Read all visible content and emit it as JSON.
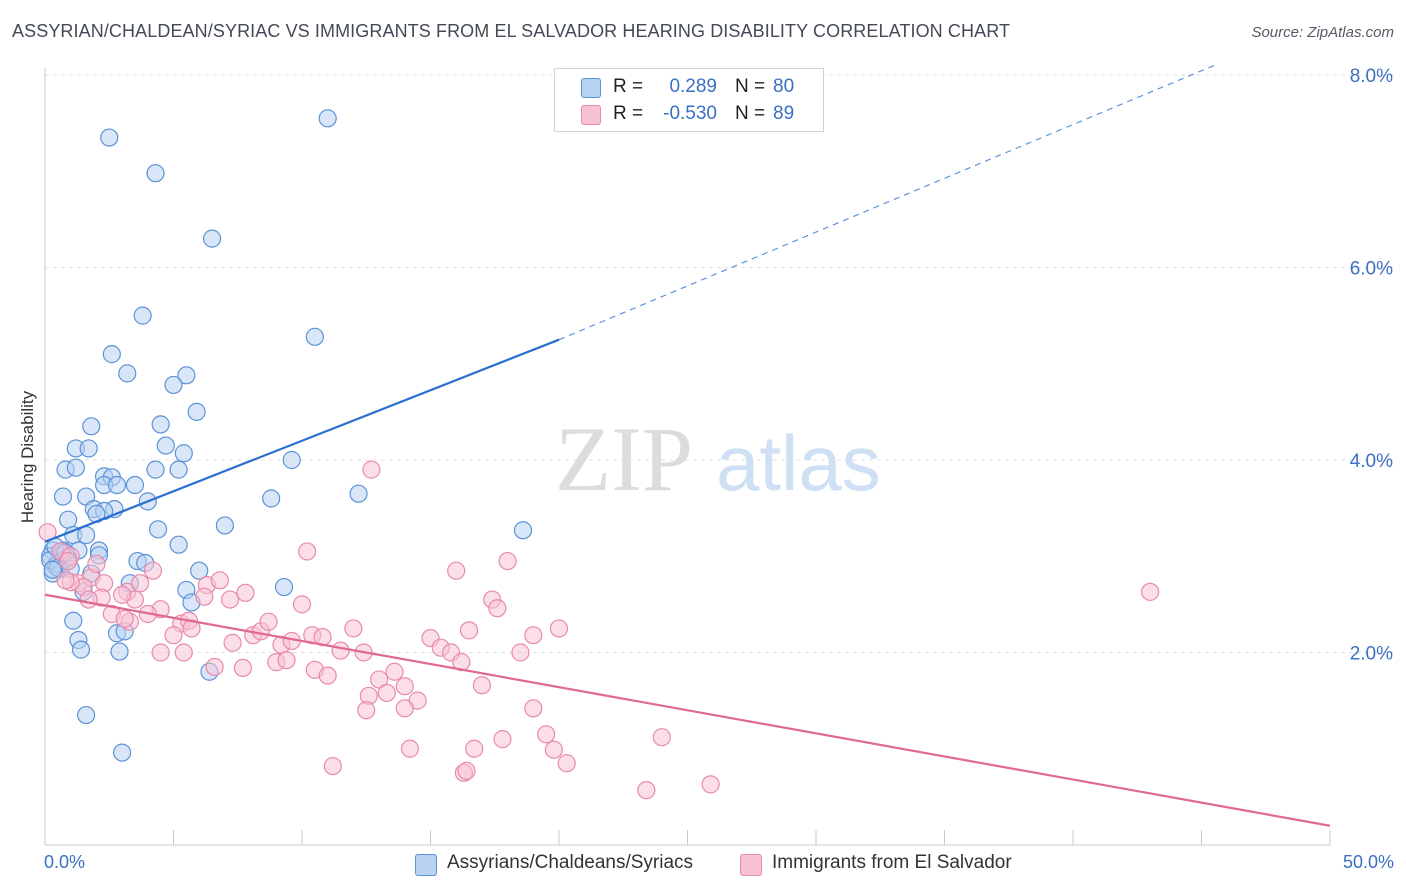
{
  "title": "ASSYRIAN/CHALDEAN/SYRIAC VS IMMIGRANTS FROM EL SALVADOR HEARING DISABILITY CORRELATION CHART",
  "source": "Source: ZipAtlas.com",
  "watermark": {
    "zip": "ZIP",
    "atlas": "atlas"
  },
  "colors": {
    "blue_fill": "#b8d2f3",
    "blue_stroke": "#5b93d8",
    "blue_line": "#2a6fd0",
    "pink_fill": "#f7c3d4",
    "pink_stroke": "#e88aac",
    "pink_line": "#e06894",
    "tick_text": "#3b6fc4",
    "grid": "#e2e2e2"
  },
  "legend_top": [
    {
      "r_label": "R =",
      "r_value": "0.289",
      "n_label": "N =",
      "n_value": "80"
    },
    {
      "r_label": "R =",
      "r_value": "-0.530",
      "n_label": "N =",
      "n_value": "89"
    }
  ],
  "chart_data": {
    "type": "scatter",
    "title": "ASSYRIAN/CHALDEAN/SYRIAC VS IMMIGRANTS FROM EL SALVADOR HEARING DISABILITY CORRELATION CHART",
    "xlabel": "",
    "ylabel": "Hearing Disability",
    "xlim": [
      0,
      50
    ],
    "ylim": [
      0,
      8
    ],
    "x_tick_labels": [
      "0.0%",
      "50.0%"
    ],
    "y_ticks": [
      2,
      4,
      6,
      8
    ],
    "y_tick_labels": [
      "2.0%",
      "4.0%",
      "6.0%",
      "8.0%"
    ],
    "grid": true,
    "legend_position": "bottom",
    "series": [
      {
        "name": "Assyrians/Chaldeans/Syriacs",
        "r": 0.289,
        "n": 80,
        "trend": {
          "x": [
            0,
            20
          ],
          "y": [
            3.15,
            5.25
          ],
          "dashed_to": [
            45.5,
            8.1
          ]
        },
        "points": [
          [
            2.5,
            7.35
          ],
          [
            11,
            7.55
          ],
          [
            4.3,
            6.98
          ],
          [
            6.5,
            6.3
          ],
          [
            3.8,
            5.5
          ],
          [
            10.5,
            5.28
          ],
          [
            2.6,
            5.1
          ],
          [
            3.2,
            4.9
          ],
          [
            5.5,
            4.88
          ],
          [
            5,
            4.78
          ],
          [
            5.9,
            4.5
          ],
          [
            1.8,
            4.35
          ],
          [
            4.5,
            4.37
          ],
          [
            4.7,
            4.15
          ],
          [
            1.2,
            4.12
          ],
          [
            1.7,
            4.12
          ],
          [
            5.4,
            4.07
          ],
          [
            9.6,
            4.0
          ],
          [
            0.8,
            3.9
          ],
          [
            1.2,
            3.92
          ],
          [
            4.3,
            3.9
          ],
          [
            5.2,
            3.9
          ],
          [
            2.3,
            3.83
          ],
          [
            2.6,
            3.82
          ],
          [
            2.3,
            3.74
          ],
          [
            2.8,
            3.74
          ],
          [
            3.5,
            3.74
          ],
          [
            12.2,
            3.65
          ],
          [
            0.7,
            3.62
          ],
          [
            1.6,
            3.62
          ],
          [
            8.8,
            3.6
          ],
          [
            4.0,
            3.57
          ],
          [
            1.9,
            3.49
          ],
          [
            2.7,
            3.49
          ],
          [
            2.3,
            3.47
          ],
          [
            2.0,
            3.44
          ],
          [
            0.9,
            3.38
          ],
          [
            7.0,
            3.32
          ],
          [
            4.4,
            3.28
          ],
          [
            18.6,
            3.27
          ],
          [
            1.1,
            3.22
          ],
          [
            1.6,
            3.22
          ],
          [
            5.2,
            3.12
          ],
          [
            0.3,
            3.06
          ],
          [
            0.7,
            3.06
          ],
          [
            1.3,
            3.06
          ],
          [
            2.1,
            3.06
          ],
          [
            0.2,
            3.0
          ],
          [
            0.6,
            3.0
          ],
          [
            2.1,
            3.01
          ],
          [
            3.6,
            2.95
          ],
          [
            3.9,
            2.93
          ],
          [
            0.4,
            2.9
          ],
          [
            0.6,
            2.87
          ],
          [
            0.3,
            2.82
          ],
          [
            1.8,
            2.82
          ],
          [
            0.5,
            2.92
          ],
          [
            6.0,
            2.85
          ],
          [
            3.3,
            2.72
          ],
          [
            9.3,
            2.68
          ],
          [
            5.5,
            2.65
          ],
          [
            1.5,
            2.63
          ],
          [
            5.7,
            2.52
          ],
          [
            1.1,
            2.33
          ],
          [
            2.8,
            2.2
          ],
          [
            3.1,
            2.22
          ],
          [
            1.3,
            2.13
          ],
          [
            1.4,
            2.03
          ],
          [
            2.9,
            2.01
          ],
          [
            6.4,
            1.8
          ],
          [
            1.6,
            1.35
          ],
          [
            3.0,
            0.96
          ],
          [
            0.2,
            2.96
          ],
          [
            0.9,
            2.98
          ],
          [
            0.5,
            2.88
          ],
          [
            0.7,
            3.03
          ],
          [
            1.0,
            2.87
          ],
          [
            0.4,
            3.1
          ],
          [
            0.8,
            3.04
          ],
          [
            0.3,
            2.86
          ]
        ]
      },
      {
        "name": "Immigrants from El Salvador",
        "r": -0.53,
        "n": 89,
        "trend": {
          "x": [
            0,
            50
          ],
          "y": [
            2.6,
            0.2
          ]
        },
        "points": [
          [
            0.1,
            3.25
          ],
          [
            0.6,
            3.05
          ],
          [
            1.0,
            3.0
          ],
          [
            0.9,
            2.95
          ],
          [
            1.3,
            2.72
          ],
          [
            1.8,
            2.78
          ],
          [
            2.3,
            2.72
          ],
          [
            2.2,
            2.57
          ],
          [
            1.5,
            2.68
          ],
          [
            1.0,
            2.73
          ],
          [
            3.2,
            2.63
          ],
          [
            3.7,
            2.72
          ],
          [
            4.2,
            2.85
          ],
          [
            3.5,
            2.55
          ],
          [
            3.0,
            2.6
          ],
          [
            4.5,
            2.45
          ],
          [
            4.0,
            2.4
          ],
          [
            2.6,
            2.4
          ],
          [
            3.3,
            2.32
          ],
          [
            5.3,
            2.3
          ],
          [
            5.6,
            2.33
          ],
          [
            5.7,
            2.25
          ],
          [
            5.0,
            2.18
          ],
          [
            5.4,
            2.0
          ],
          [
            6.3,
            2.7
          ],
          [
            6.2,
            2.58
          ],
          [
            6.8,
            2.75
          ],
          [
            7.2,
            2.55
          ],
          [
            7.8,
            2.62
          ],
          [
            8.1,
            2.18
          ],
          [
            8.4,
            2.22
          ],
          [
            8.7,
            2.32
          ],
          [
            9.2,
            2.08
          ],
          [
            9.6,
            2.12
          ],
          [
            10.0,
            2.5
          ],
          [
            10.4,
            2.18
          ],
          [
            10.8,
            2.16
          ],
          [
            11.5,
            2.02
          ],
          [
            12.0,
            2.25
          ],
          [
            12.4,
            2.0
          ],
          [
            7.3,
            2.1
          ],
          [
            6.6,
            1.85
          ],
          [
            7.7,
            1.84
          ],
          [
            9.0,
            1.9
          ],
          [
            9.4,
            1.92
          ],
          [
            10.5,
            1.82
          ],
          [
            11.0,
            1.76
          ],
          [
            13.0,
            1.72
          ],
          [
            12.6,
            1.55
          ],
          [
            13.3,
            1.58
          ],
          [
            14.0,
            1.65
          ],
          [
            14.5,
            1.5
          ],
          [
            13.6,
            1.8
          ],
          [
            14.0,
            1.42
          ],
          [
            12.5,
            1.4
          ],
          [
            10.2,
            3.05
          ],
          [
            12.7,
            3.9
          ],
          [
            15.0,
            2.15
          ],
          [
            15.4,
            2.05
          ],
          [
            15.8,
            2.0
          ],
          [
            16.2,
            1.9
          ],
          [
            16.5,
            2.23
          ],
          [
            17.0,
            1.66
          ],
          [
            17.4,
            2.55
          ],
          [
            17.6,
            2.46
          ],
          [
            18.0,
            2.95
          ],
          [
            16.0,
            2.85
          ],
          [
            19.0,
            2.18
          ],
          [
            20.0,
            2.25
          ],
          [
            18.5,
            2.0
          ],
          [
            19.0,
            1.42
          ],
          [
            19.5,
            1.15
          ],
          [
            19.8,
            0.99
          ],
          [
            20.3,
            0.85
          ],
          [
            17.8,
            1.1
          ],
          [
            16.7,
            1.0
          ],
          [
            14.2,
            1.0
          ],
          [
            16.3,
            0.75
          ],
          [
            16.4,
            0.77
          ],
          [
            11.2,
            0.82
          ],
          [
            24.0,
            1.12
          ],
          [
            23.4,
            0.57
          ],
          [
            25.9,
            0.63
          ],
          [
            43.0,
            2.63
          ],
          [
            4.5,
            2.0
          ],
          [
            3.1,
            2.35
          ],
          [
            0.8,
            2.75
          ],
          [
            1.7,
            2.55
          ],
          [
            2.0,
            2.92
          ]
        ]
      }
    ]
  }
}
